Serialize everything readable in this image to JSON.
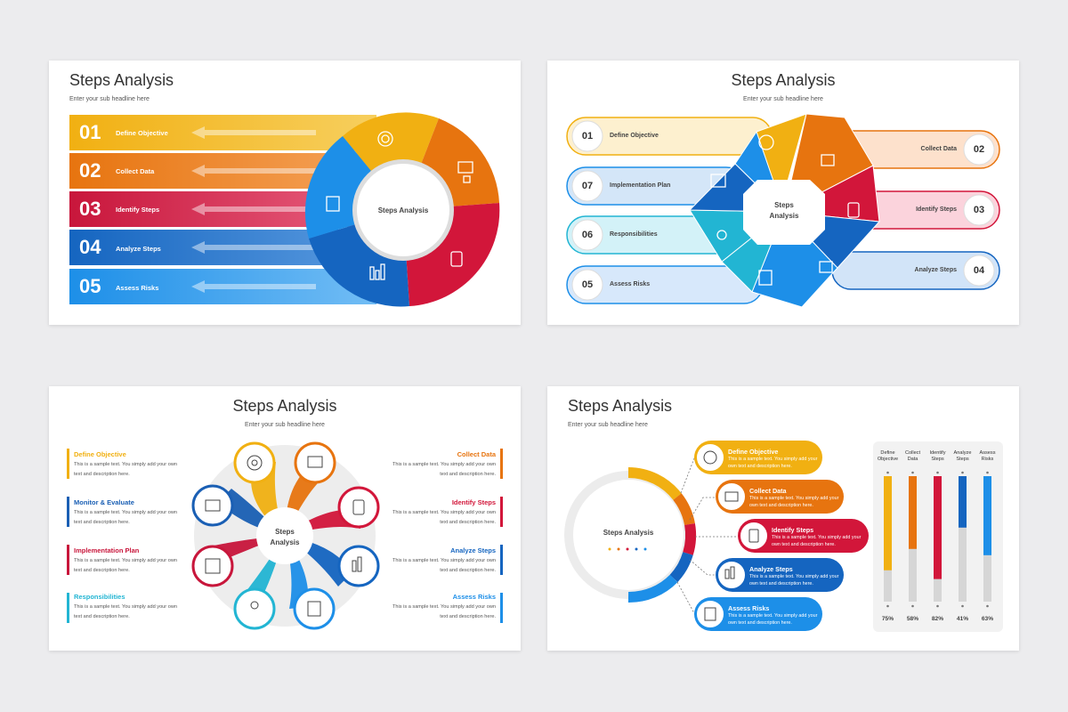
{
  "slides": [
    {
      "title": "Steps Analysis",
      "subtitle": "Enter your sub headline here",
      "center_label": "Steps Analysis",
      "steps": [
        {
          "num": "01",
          "label": "Define Objective",
          "color": "#f1b012"
        },
        {
          "num": "02",
          "label": "Collect Data",
          "color": "#e7740f"
        },
        {
          "num": "03",
          "label": "Identify Steps",
          "color": "#d2163a"
        },
        {
          "num": "04",
          "label": "Analyze Steps",
          "color": "#1565c0"
        },
        {
          "num": "05",
          "label": "Assess Risks",
          "color": "#1d8fe8"
        }
      ]
    },
    {
      "title": "Steps Analysis",
      "subtitle": "Enter your sub headline here",
      "center_label_1": "Steps",
      "center_label_2": "Analysis",
      "left": [
        {
          "num": "01",
          "label": "Define Objective"
        },
        {
          "num": "07",
          "label": "Implementation Plan"
        },
        {
          "num": "06",
          "label": "Responsibilities"
        },
        {
          "num": "05",
          "label": "Assess Risks"
        }
      ],
      "right": [
        {
          "num": "02",
          "label": "Collect Data"
        },
        {
          "num": "03",
          "label": "Identify Steps"
        },
        {
          "num": "04",
          "label": "Analyze Steps"
        }
      ]
    },
    {
      "title": "Steps Analysis",
      "subtitle": "Enter your sub headline here",
      "center_label_1": "Steps",
      "center_label_2": "Analysis",
      "left": [
        {
          "title": "Define Objective",
          "text": "This is a sample text. You simply add your own text and description here.",
          "color": "#f1b012"
        },
        {
          "title": "Monitor & Evaluate",
          "text": "This is a sample text. You simply add your own text and description here.",
          "color": "#1a5fb4"
        },
        {
          "title": "Implementation Plan",
          "text": "This is a sample text. You simply add your own text and description here.",
          "color": "#c8163b"
        },
        {
          "title": "Responsibilities",
          "text": "This is a sample text. You simply add your own text and description here.",
          "color": "#22b5d3"
        }
      ],
      "right": [
        {
          "title": "Collect Data",
          "text": "This is a sample text. You simply add your own text and description here.",
          "color": "#e7740f"
        },
        {
          "title": "Identify Steps",
          "text": "This is a sample text. You simply add your own text and description here.",
          "color": "#d2163a"
        },
        {
          "title": "Analyze Steps",
          "text": "This is a sample text. You simply add your own text and description here.",
          "color": "#1565c0"
        },
        {
          "title": "Assess Risks",
          "text": "This is a sample text. You simply add your own text and description here.",
          "color": "#1d8fe8"
        }
      ]
    },
    {
      "title": "Steps Analysis",
      "subtitle": "Enter your sub headline here",
      "center_label": "Steps Analysis",
      "bubbles": [
        {
          "title": "Define Objective",
          "text": "This is a sample text. You simply add your own text and description here.",
          "color": "#f1b012"
        },
        {
          "title": "Collect Data",
          "text": "This is a sample text. You simply add your own text and description here.",
          "color": "#e7740f"
        },
        {
          "title": "Identify Steps",
          "text": "This is a sample text. You simply add your own text and description here.",
          "color": "#d2163a"
        },
        {
          "title": "Analyze Steps",
          "text": "This is a sample text. You simply add your own text and description here.",
          "color": "#1565c0"
        },
        {
          "title": "Assess Risks",
          "text": "This is a sample text. You simply add your own text and description here.",
          "color": "#1d8fe8"
        }
      ],
      "chart_data": {
        "type": "bar",
        "categories": [
          "Define Objective",
          "Collect Data",
          "Identify Steps",
          "Analyze Steps",
          "Assess Risks"
        ],
        "values": [
          75,
          58,
          82,
          41,
          63
        ],
        "value_labels": [
          "75%",
          "58%",
          "82%",
          "41%",
          "63%"
        ],
        "ylim": [
          0,
          100
        ],
        "colors": [
          "#f1b012",
          "#e7740f",
          "#d2163a",
          "#1565c0",
          "#1d8fe8"
        ]
      }
    }
  ]
}
